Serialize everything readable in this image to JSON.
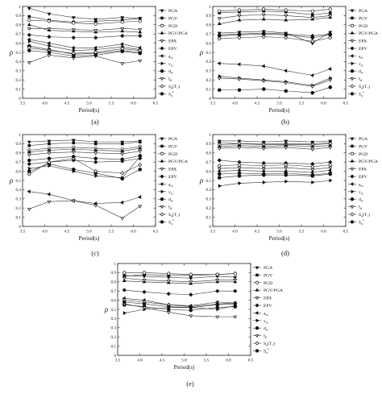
{
  "figure": {
    "panel_labels": [
      "(a)",
      "(b)",
      "(c)",
      "(d)",
      "(e)"
    ]
  },
  "chart_data": [
    {
      "type": "line",
      "panel_label": "(a)",
      "xlabel": "Period(s)",
      "ylabel": "ρ",
      "xlim": [
        3.5,
        6.5
      ],
      "ylim": [
        0,
        1.0
      ],
      "xticks": [
        3.5,
        4.0,
        4.5,
        5.0,
        5.5,
        6.0,
        6.5
      ],
      "yticks": [
        0,
        0.1,
        0.2,
        0.3,
        0.4,
        0.5,
        0.6,
        0.7,
        0.8,
        0.9,
        1.0
      ],
      "x": [
        3.65,
        4.1,
        4.65,
        5.15,
        5.75,
        6.15
      ],
      "legend_position": "right",
      "series": [
        {
          "name": "PGA",
          "marker": "triangle-down",
          "filled": true,
          "values": [
            0.98,
            0.92,
            0.88,
            0.86,
            0.88,
            0.87
          ]
        },
        {
          "name": "PGV",
          "marker": "square",
          "filled": true,
          "values": [
            0.89,
            0.85,
            0.83,
            0.84,
            0.85,
            0.87
          ]
        },
        {
          "name": "PGD",
          "marker": "circle",
          "filled": false,
          "values": [
            0.85,
            0.84,
            0.82,
            0.81,
            0.83,
            0.84
          ]
        },
        {
          "name": "PGV/PGA",
          "marker": "triangle-up",
          "filled": true,
          "values": [
            0.8,
            0.74,
            0.73,
            0.72,
            0.73,
            0.72
          ]
        },
        {
          "name": "EPA",
          "marker": "triangle-down",
          "filled": false,
          "values": [
            0.76,
            0.76,
            0.75,
            0.74,
            0.76,
            0.75
          ]
        },
        {
          "name": "EPV",
          "marker": "diamond",
          "filled": true,
          "values": [
            0.69,
            0.67,
            0.66,
            0.66,
            0.68,
            0.68
          ]
        },
        {
          "name": "a_rs",
          "label": "a",
          "sub": "rs",
          "marker": "triangle-left",
          "filled": true,
          "values": [
            0.64,
            0.6,
            0.55,
            0.55,
            0.59,
            0.55
          ]
        },
        {
          "name": "v_rs",
          "label": "v",
          "sub": "rs",
          "marker": "triangle-right",
          "filled": true,
          "values": [
            0.62,
            0.57,
            0.52,
            0.53,
            0.56,
            0.53
          ]
        },
        {
          "name": "d_rs",
          "label": "d",
          "sub": "rs",
          "marker": "hexagon",
          "filled": true,
          "values": [
            0.57,
            0.53,
            0.48,
            0.49,
            0.52,
            0.5
          ]
        },
        {
          "name": "I_d",
          "label": "I",
          "sub": "d",
          "marker": "triangle-down",
          "filled": false,
          "values": [
            0.39,
            0.47,
            0.44,
            0.46,
            0.38,
            0.41
          ]
        },
        {
          "name": "S_a(T_1)",
          "label": "S",
          "sub": "a",
          "suffix": "(T₁)",
          "marker": "diamond",
          "filled": false,
          "values": [
            0.55,
            0.52,
            0.49,
            0.5,
            0.54,
            0.52
          ]
        },
        {
          "name": "S_a*",
          "label": "S",
          "sub": "a",
          "sup": "*",
          "marker": "pentagon",
          "filled": true,
          "values": [
            0.52,
            0.5,
            0.46,
            0.47,
            0.51,
            0.49
          ]
        }
      ]
    },
    {
      "type": "line",
      "panel_label": "(b)",
      "xlabel": "Period(s)",
      "ylabel": "ρ",
      "xlim": [
        3.5,
        6.5
      ],
      "ylim": [
        0,
        1.0
      ],
      "xticks": [
        3.5,
        4.0,
        4.5,
        5.0,
        5.5,
        6.0,
        6.5
      ],
      "yticks": [
        0,
        0.1,
        0.2,
        0.3,
        0.4,
        0.5,
        0.6,
        0.7,
        0.8,
        0.9,
        1.0
      ],
      "x": [
        3.65,
        4.1,
        4.65,
        5.15,
        5.75,
        6.15
      ],
      "legend_position": "right",
      "series": [
        {
          "name": "PGA",
          "marker": "triangle-down",
          "filled": true,
          "values": [
            0.71,
            0.72,
            0.73,
            0.71,
            0.6,
            0.72
          ]
        },
        {
          "name": "PGV",
          "marker": "square",
          "filled": true,
          "values": [
            0.93,
            0.94,
            0.95,
            0.94,
            0.91,
            0.93
          ]
        },
        {
          "name": "PGD",
          "marker": "circle",
          "filled": false,
          "values": [
            0.95,
            0.96,
            0.97,
            0.96,
            0.95,
            0.97
          ]
        },
        {
          "name": "PGV/PGA",
          "marker": "triangle-up",
          "filled": true,
          "values": [
            0.81,
            0.85,
            0.86,
            0.85,
            0.86,
            0.88
          ]
        },
        {
          "name": "EPA",
          "marker": "triangle-down",
          "filled": false,
          "values": [
            0.87,
            0.9,
            0.91,
            0.9,
            0.88,
            0.9
          ]
        },
        {
          "name": "EPV",
          "marker": "diamond",
          "filled": true,
          "values": [
            0.69,
            0.7,
            0.71,
            0.7,
            0.68,
            0.7
          ]
        },
        {
          "name": "a_rs",
          "label": "a",
          "sub": "rs",
          "marker": "triangle-left",
          "filled": true,
          "values": [
            0.38,
            0.37,
            0.35,
            0.3,
            0.25,
            0.32
          ]
        },
        {
          "name": "v_rs",
          "label": "v",
          "sub": "rs",
          "marker": "triangle-right",
          "filled": true,
          "values": [
            0.24,
            0.22,
            0.2,
            0.18,
            0.14,
            0.22
          ]
        },
        {
          "name": "d_rs",
          "label": "d",
          "sub": "rs",
          "marker": "hexagon",
          "filled": true,
          "values": [
            0.09,
            0.09,
            0.1,
            0.08,
            0.06,
            0.12
          ]
        },
        {
          "name": "I_d",
          "label": "I",
          "sub": "d",
          "marker": "triangle-down",
          "filled": false,
          "values": [
            0.22,
            0.21,
            0.19,
            0.17,
            0.13,
            0.2
          ]
        },
        {
          "name": "S_a(T_1)",
          "label": "S",
          "sub": "a",
          "suffix": "(T₁)",
          "marker": "diamond",
          "filled": false,
          "values": [
            0.65,
            0.66,
            0.67,
            0.66,
            0.62,
            0.66
          ]
        },
        {
          "name": "S_a*",
          "label": "S",
          "sub": "a",
          "sup": "*",
          "marker": "pentagon",
          "filled": true,
          "values": [
            0.68,
            0.69,
            0.7,
            0.69,
            0.66,
            0.69
          ]
        }
      ]
    },
    {
      "type": "line",
      "panel_label": "(c)",
      "xlabel": "Period(s)",
      "ylabel": "ρ",
      "xlim": [
        3.5,
        6.5
      ],
      "ylim": [
        0,
        1.0
      ],
      "xticks": [
        3.5,
        4.0,
        4.5,
        5.0,
        5.5,
        6.0,
        6.5
      ],
      "yticks": [
        0,
        0.1,
        0.2,
        0.3,
        0.4,
        0.5,
        0.6,
        0.7,
        0.8,
        0.9,
        1.0
      ],
      "x": [
        3.65,
        4.1,
        4.65,
        5.15,
        5.75,
        6.15
      ],
      "legend_position": "right",
      "series": [
        {
          "name": "PGA",
          "marker": "triangle-down",
          "filled": true,
          "values": [
            0.92,
            0.93,
            0.94,
            0.92,
            0.92,
            0.93
          ]
        },
        {
          "name": "PGV",
          "marker": "square",
          "filled": true,
          "values": [
            0.88,
            0.9,
            0.91,
            0.9,
            0.9,
            0.92
          ]
        },
        {
          "name": "PGD",
          "marker": "circle",
          "filled": false,
          "values": [
            0.83,
            0.85,
            0.86,
            0.85,
            0.84,
            0.87
          ]
        },
        {
          "name": "PGV/PGA",
          "marker": "triangle-up",
          "filled": true,
          "values": [
            0.81,
            0.83,
            0.84,
            0.83,
            0.82,
            0.85
          ]
        },
        {
          "name": "EPA",
          "marker": "triangle-down",
          "filled": false,
          "values": [
            0.78,
            0.8,
            0.81,
            0.8,
            0.79,
            0.82
          ]
        },
        {
          "name": "EPV",
          "marker": "diamond",
          "filled": true,
          "values": [
            0.68,
            0.7,
            0.72,
            0.7,
            0.71,
            0.74
          ]
        },
        {
          "name": "a_rs",
          "label": "a",
          "sub": "rs",
          "marker": "triangle-left",
          "filled": true,
          "values": [
            0.38,
            0.35,
            0.28,
            0.25,
            0.26,
            0.32
          ]
        },
        {
          "name": "v_rs",
          "label": "v",
          "sub": "rs",
          "marker": "triangle-right",
          "filled": true,
          "values": [
            0.63,
            0.66,
            0.6,
            0.55,
            0.53,
            0.76
          ]
        },
        {
          "name": "d_rs",
          "label": "d",
          "sub": "rs",
          "marker": "hexagon",
          "filled": true,
          "values": [
            0.6,
            0.68,
            0.62,
            0.58,
            0.52,
            0.62
          ]
        },
        {
          "name": "I_d",
          "label": "I",
          "sub": "d",
          "marker": "triangle-down",
          "filled": false,
          "values": [
            0.19,
            0.27,
            0.28,
            0.23,
            0.09,
            0.22
          ]
        },
        {
          "name": "S_a(T_1)",
          "label": "S",
          "sub": "a",
          "suffix": "(T₁)",
          "marker": "diamond",
          "filled": false,
          "values": [
            0.57,
            0.7,
            0.74,
            0.6,
            0.58,
            0.67
          ]
        },
        {
          "name": "S_a*",
          "label": "S",
          "sub": "a",
          "sup": "*",
          "marker": "pentagon",
          "filled": true,
          "values": [
            0.72,
            0.74,
            0.76,
            0.74,
            0.73,
            0.77
          ]
        }
      ]
    },
    {
      "type": "line",
      "panel_label": "(d)",
      "xlabel": "Period(s)",
      "ylabel": "ρ",
      "xlim": [
        3.5,
        6.5
      ],
      "ylim": [
        0,
        1.0
      ],
      "xticks": [
        3.5,
        4.0,
        4.5,
        5.0,
        5.5,
        6.0,
        6.5
      ],
      "yticks": [
        0,
        0.1,
        0.2,
        0.3,
        0.4,
        0.5,
        0.6,
        0.7,
        0.8,
        0.9,
        1.0
      ],
      "x": [
        3.65,
        4.1,
        4.65,
        5.15,
        5.75,
        6.15
      ],
      "legend_position": "right",
      "series": [
        {
          "name": "PGA",
          "marker": "triangle-down",
          "filled": true,
          "values": [
            0.93,
            0.93,
            0.92,
            0.93,
            0.92,
            0.93
          ]
        },
        {
          "name": "PGV",
          "marker": "square",
          "filled": true,
          "values": [
            0.91,
            0.9,
            0.9,
            0.9,
            0.9,
            0.91
          ]
        },
        {
          "name": "PGD",
          "marker": "circle",
          "filled": false,
          "values": [
            0.89,
            0.9,
            0.89,
            0.89,
            0.89,
            0.9
          ]
        },
        {
          "name": "PGV/PGA",
          "marker": "triangle-up",
          "filled": true,
          "values": [
            0.87,
            0.88,
            0.87,
            0.88,
            0.87,
            0.88
          ]
        },
        {
          "name": "EPA",
          "marker": "triangle-down",
          "filled": false,
          "values": [
            0.85,
            0.86,
            0.85,
            0.86,
            0.84,
            0.86
          ]
        },
        {
          "name": "EPV",
          "marker": "diamond",
          "filled": true,
          "values": [
            0.72,
            0.7,
            0.69,
            0.69,
            0.68,
            0.7
          ]
        },
        {
          "name": "a_rs",
          "label": "a",
          "sub": "rs",
          "marker": "triangle-left",
          "filled": true,
          "values": [
            0.6,
            0.61,
            0.6,
            0.6,
            0.59,
            0.61
          ]
        },
        {
          "name": "v_rs",
          "label": "v",
          "sub": "rs",
          "marker": "triangle-right",
          "filled": true,
          "values": [
            0.44,
            0.47,
            0.48,
            0.49,
            0.48,
            0.5
          ]
        },
        {
          "name": "d_rs",
          "label": "d",
          "sub": "rs",
          "marker": "hexagon",
          "filled": true,
          "values": [
            0.53,
            0.55,
            0.56,
            0.56,
            0.55,
            0.57
          ]
        },
        {
          "name": "I_d",
          "label": "I",
          "sub": "d",
          "marker": "triangle-down",
          "filled": false,
          "values": [
            0.63,
            0.64,
            0.63,
            0.64,
            0.62,
            0.64
          ]
        },
        {
          "name": "S_a(T_1)",
          "label": "S",
          "sub": "a",
          "suffix": "(T₁)",
          "marker": "diamond",
          "filled": false,
          "values": [
            0.66,
            0.67,
            0.66,
            0.67,
            0.65,
            0.67
          ]
        },
        {
          "name": "S_a*",
          "label": "S",
          "sub": "a",
          "sup": "*",
          "marker": "pentagon",
          "filled": true,
          "values": [
            0.57,
            0.58,
            0.57,
            0.58,
            0.56,
            0.58
          ]
        }
      ]
    },
    {
      "type": "line",
      "panel_label": "(e)",
      "xlabel": "Period(s)",
      "ylabel": "ρ",
      "xlim": [
        3.5,
        6.5
      ],
      "ylim": [
        0,
        1.0
      ],
      "xticks": [
        3.5,
        4.0,
        4.5,
        5.0,
        5.5,
        6.0,
        6.5
      ],
      "yticks": [
        0,
        0.1,
        0.2,
        0.3,
        0.4,
        0.5,
        0.6,
        0.7,
        0.8,
        0.9,
        1.0
      ],
      "x": [
        3.65,
        4.1,
        4.65,
        5.15,
        5.75,
        6.15
      ],
      "legend_position": "right",
      "series": [
        {
          "name": "PGA",
          "marker": "triangle-down",
          "filled": true,
          "values": [
            0.87,
            0.86,
            0.85,
            0.84,
            0.86,
            0.85
          ]
        },
        {
          "name": "PGV",
          "marker": "square",
          "filled": true,
          "values": [
            0.86,
            0.88,
            0.87,
            0.87,
            0.88,
            0.89
          ]
        },
        {
          "name": "PGD",
          "marker": "circle",
          "filled": false,
          "values": [
            0.9,
            0.9,
            0.89,
            0.88,
            0.88,
            0.89
          ]
        },
        {
          "name": "PGV/PGA",
          "marker": "triangle-up",
          "filled": true,
          "values": [
            0.81,
            0.8,
            0.79,
            0.78,
            0.8,
            0.8
          ]
        },
        {
          "name": "EPA",
          "marker": "triangle-down",
          "filled": false,
          "values": [
            0.84,
            0.82,
            0.81,
            0.8,
            0.82,
            0.82
          ]
        },
        {
          "name": "EPV",
          "marker": "diamond",
          "filled": true,
          "values": [
            0.71,
            0.69,
            0.67,
            0.66,
            0.7,
            0.7
          ]
        },
        {
          "name": "a_rs",
          "label": "a",
          "sub": "rs",
          "marker": "triangle-left",
          "filled": true,
          "values": [
            0.62,
            0.6,
            0.55,
            0.54,
            0.58,
            0.57
          ]
        },
        {
          "name": "v_rs",
          "label": "v",
          "sub": "rs",
          "marker": "triangle-right",
          "filled": true,
          "values": [
            0.46,
            0.5,
            0.52,
            0.52,
            0.5,
            0.54
          ]
        },
        {
          "name": "d_rs",
          "label": "d",
          "sub": "rs",
          "marker": "hexagon",
          "filled": true,
          "values": [
            0.55,
            0.53,
            0.5,
            0.49,
            0.52,
            0.53
          ]
        },
        {
          "name": "I_d",
          "label": "I",
          "sub": "d",
          "marker": "triangle-down",
          "filled": false,
          "values": [
            0.56,
            0.52,
            0.47,
            0.43,
            0.42,
            0.42
          ]
        },
        {
          "name": "S_a(T_1)",
          "label": "S",
          "sub": "a",
          "suffix": "(T₁)",
          "marker": "diamond",
          "filled": false,
          "values": [
            0.6,
            0.58,
            0.55,
            0.53,
            0.56,
            0.57
          ]
        },
        {
          "name": "S_a*",
          "label": "S",
          "sub": "a",
          "sup": "*",
          "marker": "pentagon",
          "filled": true,
          "values": [
            0.58,
            0.56,
            0.53,
            0.52,
            0.55,
            0.56
          ]
        }
      ]
    }
  ]
}
